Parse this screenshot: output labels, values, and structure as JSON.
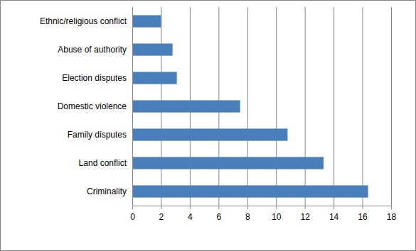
{
  "chart_data": {
    "type": "bar",
    "orientation": "horizontal",
    "categories": [
      "Ethnic/religious conflict",
      "Abuse of authority",
      "Election disputes",
      "Domestic violence",
      "Family disputes",
      "Land conflict",
      "Criminality"
    ],
    "values": [
      2.0,
      2.8,
      3.1,
      7.5,
      10.8,
      13.3,
      16.4
    ],
    "color": "#4a7ebb",
    "xlim": [
      0,
      18
    ],
    "xticks": [
      0,
      2,
      4,
      6,
      8,
      10,
      12,
      14,
      16,
      18
    ],
    "grid": true
  }
}
